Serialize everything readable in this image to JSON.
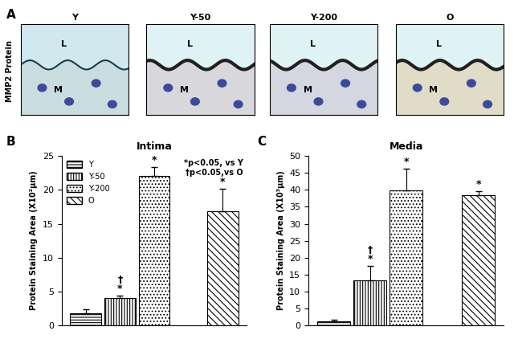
{
  "panel_a": {
    "letter": "A",
    "row_label": "MMP2 Protein",
    "columns": [
      "Y",
      "Y-50",
      "Y-200",
      "O"
    ],
    "lumen_label": "L",
    "media_label": "M"
  },
  "chart_data": [
    {
      "type": "bar",
      "letter": "B",
      "title": "Intima",
      "y_label": "Protein Staining Area (X10²µm)",
      "categories": [
        "Y",
        "Y-50",
        "Y-200",
        null,
        "O"
      ],
      "values": [
        1.8,
        4.0,
        22.0,
        null,
        16.8
      ],
      "errors": [
        0.6,
        0.4,
        1.3,
        null,
        3.3
      ],
      "marks": [
        null,
        "†\n*",
        "*",
        null,
        "*"
      ],
      "annotations": [
        "*p<0.05, vs Y",
        "†p<0.05,vs O"
      ],
      "ylim": [
        0,
        25
      ],
      "yticks": [
        0,
        5,
        10,
        15,
        20,
        25
      ],
      "legend": "upper left",
      "tick_labels": "y",
      "color": "#ffffff"
    },
    {
      "type": "bar",
      "letter": "C",
      "title": "Media",
      "y_label": "Protein Staining Area (X10³µm)",
      "categories": [
        "Y",
        "Y-50",
        "Y-200",
        null,
        "O"
      ],
      "values": [
        1.3,
        13.2,
        39.8,
        null,
        38.5
      ],
      "errors": [
        0.3,
        4.3,
        6.5,
        null,
        1.0
      ],
      "marks": [
        null,
        "†\n*",
        "*",
        null,
        "*"
      ],
      "ylim": [
        0,
        50
      ],
      "yticks": [
        0,
        5,
        10,
        15,
        20,
        25,
        30,
        35,
        40,
        45,
        50
      ],
      "tick_labels": "y",
      "color": "#ffffff"
    }
  ]
}
